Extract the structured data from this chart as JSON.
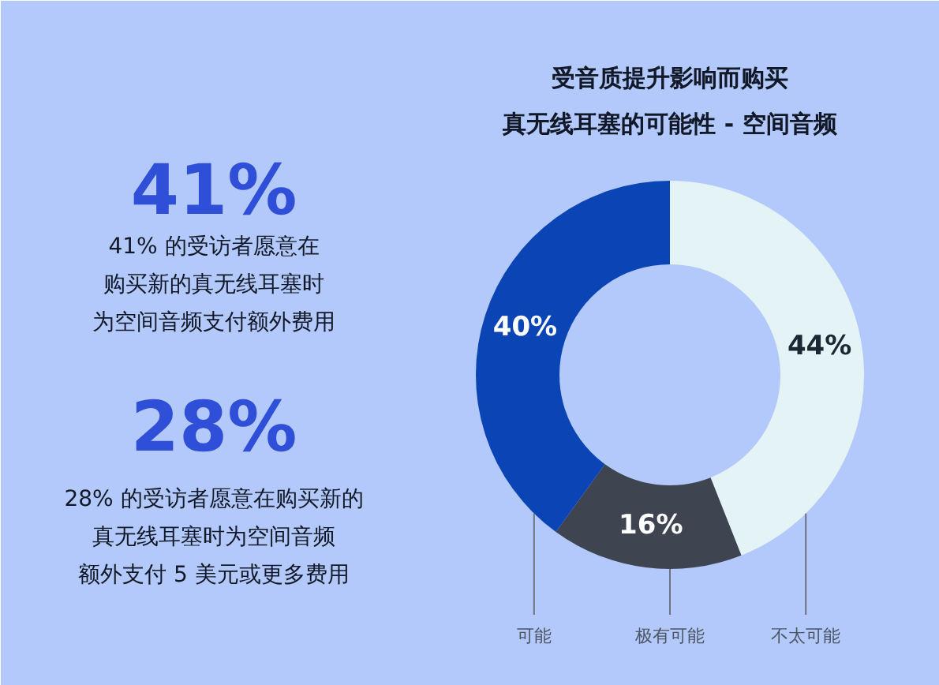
{
  "chart_data": {
    "type": "donut",
    "title": "受音质提升影响而购买真无线耳塞的可能性 - 空间音频",
    "categories": [
      "不太可能",
      "极有可能",
      "可能"
    ],
    "values": [
      44,
      16,
      40
    ],
    "colors": [
      "#e3f3f6",
      "#3e4550",
      "#0b45b5"
    ],
    "value_labels": [
      "44%",
      "16%",
      "40%"
    ],
    "annotations": [
      "41%",
      "41% 的受访者愿意在",
      "购买新的真无线耳塞时",
      "为空间音频支付额外费用",
      "28%",
      "28% 的受访者愿意在购买新的",
      "真无线耳塞时为空间音频",
      "额外支付 5 美元或更多费用"
    ]
  }
}
